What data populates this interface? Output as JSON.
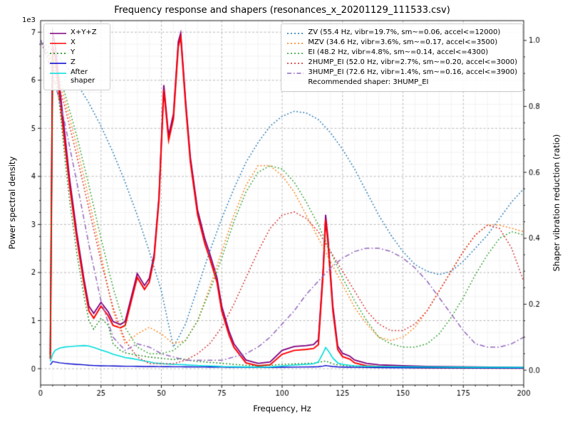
{
  "chart_data": {
    "type": "line",
    "title": "Frequency response and shapers (resonances_x_20201129_111533.csv)",
    "xlabel": "Frequency, Hz",
    "ylabel_left": "Power spectral density",
    "ylabel_right": "Shaper vibration reduction (ratio)",
    "left_axis_multiplier": "1e3",
    "legend_note": "Recommended shaper: 3HUMP_EI",
    "recommended_shaper": "3HUMP_EI",
    "grid": "both",
    "legend_positions": {
      "psd": "upper left",
      "shapers": "upper right"
    },
    "xlim": [
      0,
      200
    ],
    "ylim_left": [
      -340,
      7240
    ],
    "ylim_right": [
      -0.045,
      1.06
    ],
    "xticks": [
      0,
      25,
      50,
      75,
      100,
      125,
      150,
      175,
      200
    ],
    "yticks_left": [
      0,
      1000,
      2000,
      3000,
      4000,
      5000,
      6000,
      7000
    ],
    "yticks_right": [
      0.0,
      0.2,
      0.4,
      0.6,
      0.8,
      1.0
    ],
    "x_minor_step": 5,
    "y_minor_step_left": 250,
    "y_minor_step_right": 0.05,
    "psd_x": [
      4,
      5,
      6,
      8,
      10,
      12,
      15,
      18,
      20,
      22,
      25,
      28,
      30,
      33,
      35,
      38,
      40,
      43,
      45,
      47,
      49,
      51,
      53,
      55,
      57,
      58,
      60,
      62,
      65,
      68,
      70,
      73,
      75,
      78,
      80,
      85,
      90,
      95,
      100,
      105,
      110,
      113,
      115,
      117,
      118,
      119,
      121,
      123,
      125,
      128,
      130,
      135,
      140,
      150,
      160,
      180,
      200
    ],
    "shaper_x": [
      0,
      5,
      10,
      15,
      20,
      25,
      30,
      35,
      40,
      45,
      50,
      55,
      60,
      65,
      70,
      75,
      80,
      85,
      90,
      95,
      100,
      105,
      110,
      115,
      120,
      125,
      130,
      135,
      140,
      145,
      150,
      155,
      160,
      165,
      170,
      175,
      180,
      185,
      190,
      195,
      200
    ],
    "series": [
      {
        "name": "X+Y+Z",
        "label": "X+Y+Z",
        "axis": "left",
        "x_ref": "psd_x",
        "color": "#800080",
        "style": "solid",
        "width": 1.8,
        "y": [
          300,
          7000,
          6750,
          5800,
          4900,
          3950,
          2820,
          1850,
          1300,
          1150,
          1380,
          1180,
          980,
          920,
          980,
          1580,
          1980,
          1730,
          1880,
          2380,
          3580,
          5900,
          4850,
          5300,
          6800,
          6980,
          5600,
          4400,
          3300,
          2700,
          2400,
          1900,
          1300,
          780,
          520,
          180,
          110,
          140,
          380,
          460,
          480,
          500,
          600,
          2100,
          3200,
          2700,
          1300,
          470,
          320,
          260,
          180,
          110,
          80,
          60,
          45,
          35,
          25
        ]
      },
      {
        "name": "X",
        "label": "X",
        "axis": "left",
        "x_ref": "psd_x",
        "color": "#ff0000",
        "style": "solid",
        "width": 2.0,
        "y": [
          200,
          6700,
          6500,
          5600,
          4700,
          3800,
          2700,
          1750,
          1200,
          1050,
          1300,
          1100,
          900,
          850,
          900,
          1500,
          1900,
          1650,
          1800,
          2300,
          3500,
          5800,
          4750,
          5200,
          6700,
          6900,
          5500,
          4300,
          3200,
          2600,
          2300,
          1800,
          1200,
          700,
          450,
          120,
          60,
          80,
          300,
          380,
          400,
          420,
          500,
          2000,
          3100,
          2600,
          1200,
          400,
          250,
          200,
          120,
          60,
          40,
          30,
          20,
          15,
          10
        ]
      },
      {
        "name": "Y",
        "label": "Y",
        "axis": "left",
        "x_ref": "psd_x",
        "color": "#008000",
        "style": "dotted",
        "width": 1.4,
        "y": [
          250,
          6500,
          6300,
          5400,
          4400,
          3500,
          2400,
          1500,
          1000,
          820,
          1050,
          900,
          520,
          380,
          330,
          300,
          280,
          260,
          240,
          230,
          220,
          210,
          200,
          190,
          200,
          210,
          190,
          170,
          150,
          140,
          130,
          120,
          110,
          100,
          90,
          70,
          60,
          70,
          90,
          100,
          110,
          115,
          130,
          150,
          160,
          140,
          100,
          80,
          70,
          60,
          50,
          40,
          35,
          25,
          20,
          12,
          10
        ]
      },
      {
        "name": "Z",
        "label": "Z",
        "axis": "left",
        "x_ref": "psd_x",
        "color": "#0000cc",
        "style": "solid",
        "width": 1.4,
        "y": [
          80,
          150,
          140,
          120,
          110,
          100,
          90,
          80,
          70,
          65,
          60,
          58,
          55,
          52,
          50,
          50,
          48,
          46,
          45,
          44,
          43,
          42,
          41,
          40,
          40,
          40,
          38,
          37,
          36,
          35,
          34,
          33,
          32,
          31,
          30,
          28,
          27,
          27,
          30,
          32,
          35,
          38,
          42,
          55,
          65,
          58,
          45,
          38,
          34,
          30,
          28,
          25,
          22,
          20,
          18,
          15,
          12
        ]
      },
      {
        "name": "After shaper",
        "label": "After shaper",
        "axis": "left",
        "x_ref": "psd_x",
        "color": "#00dddd",
        "style": "solid",
        "width": 1.6,
        "y": [
          150,
          300,
          380,
          430,
          450,
          460,
          470,
          480,
          470,
          440,
          390,
          340,
          300,
          260,
          230,
          210,
          190,
          160,
          140,
          120,
          110,
          100,
          95,
          90,
          85,
          85,
          80,
          75,
          65,
          60,
          55,
          50,
          45,
          42,
          40,
          35,
          32,
          35,
          55,
          75,
          90,
          100,
          140,
          330,
          440,
          380,
          220,
          120,
          90,
          70,
          60,
          50,
          45,
          40,
          35,
          28,
          25
        ]
      },
      {
        "name": "ZV",
        "label": "ZV (55.4 Hz, vibr=19.7%, sm~=0.06, accel<=12000)",
        "axis": "right",
        "x_ref": "shaper_x",
        "color": "#1f77b4",
        "style": "dotted",
        "width": 1.5,
        "y": [
          1.0,
          0.97,
          0.93,
          0.87,
          0.81,
          0.74,
          0.66,
          0.57,
          0.47,
          0.36,
          0.24,
          0.07,
          0.14,
          0.25,
          0.36,
          0.46,
          0.55,
          0.63,
          0.69,
          0.74,
          0.77,
          0.785,
          0.78,
          0.76,
          0.72,
          0.67,
          0.61,
          0.54,
          0.47,
          0.41,
          0.36,
          0.32,
          0.3,
          0.29,
          0.3,
          0.33,
          0.37,
          0.41,
          0.46,
          0.51,
          0.55
        ]
      },
      {
        "name": "MZV",
        "label": "MZV (34.6 Hz, vibr=3.6%, sm~=0.17, accel<=3500)",
        "axis": "right",
        "x_ref": "shaper_x",
        "color": "#ff7f0e",
        "style": "dotted",
        "width": 1.5,
        "y": [
          1.0,
          0.93,
          0.82,
          0.68,
          0.52,
          0.35,
          0.18,
          0.08,
          0.11,
          0.13,
          0.11,
          0.08,
          0.09,
          0.15,
          0.25,
          0.36,
          0.47,
          0.56,
          0.62,
          0.62,
          0.59,
          0.54,
          0.47,
          0.4,
          0.33,
          0.26,
          0.19,
          0.14,
          0.1,
          0.09,
          0.1,
          0.13,
          0.18,
          0.24,
          0.3,
          0.36,
          0.41,
          0.44,
          0.44,
          0.43,
          0.42
        ]
      },
      {
        "name": "EI",
        "label": "EI (48.2 Hz, vibr=4.8%, sm~=0.14, accel<=4300)",
        "axis": "right",
        "x_ref": "shaper_x",
        "color": "#2ca02c",
        "style": "dotted",
        "width": 1.5,
        "y": [
          1.0,
          0.94,
          0.84,
          0.71,
          0.56,
          0.4,
          0.25,
          0.13,
          0.07,
          0.05,
          0.05,
          0.06,
          0.09,
          0.15,
          0.24,
          0.34,
          0.45,
          0.54,
          0.6,
          0.62,
          0.61,
          0.57,
          0.51,
          0.44,
          0.36,
          0.28,
          0.21,
          0.15,
          0.1,
          0.08,
          0.07,
          0.07,
          0.08,
          0.11,
          0.16,
          0.22,
          0.29,
          0.35,
          0.4,
          0.42,
          0.41
        ]
      },
      {
        "name": "2HUMP_EI",
        "label": "2HUMP_EI (52.0 Hz, vibr=2.7%, sm~=0.20, accel<=3000)",
        "axis": "right",
        "x_ref": "shaper_x",
        "color": "#d62728",
        "style": "dotted",
        "width": 1.5,
        "y": [
          1.0,
          0.92,
          0.8,
          0.65,
          0.49,
          0.33,
          0.19,
          0.09,
          0.04,
          0.02,
          0.02,
          0.02,
          0.03,
          0.05,
          0.08,
          0.13,
          0.2,
          0.28,
          0.36,
          0.43,
          0.47,
          0.48,
          0.46,
          0.42,
          0.36,
          0.3,
          0.24,
          0.18,
          0.14,
          0.12,
          0.12,
          0.14,
          0.18,
          0.24,
          0.3,
          0.36,
          0.41,
          0.44,
          0.43,
          0.37,
          0.27
        ]
      },
      {
        "name": "3HUMP_EI",
        "label": "3HUMP_EI (72.6 Hz, vibr=1.4%, sm~=0.16, accel<=3900)",
        "axis": "right",
        "x_ref": "shaper_x",
        "color": "#9467bd",
        "style": "dashdot",
        "width": 1.5,
        "y": [
          1.0,
          0.9,
          0.75,
          0.57,
          0.38,
          0.21,
          0.1,
          0.06,
          0.08,
          0.07,
          0.05,
          0.04,
          0.03,
          0.03,
          0.03,
          0.03,
          0.04,
          0.05,
          0.07,
          0.1,
          0.14,
          0.18,
          0.23,
          0.27,
          0.31,
          0.34,
          0.36,
          0.37,
          0.37,
          0.36,
          0.34,
          0.31,
          0.27,
          0.22,
          0.17,
          0.12,
          0.08,
          0.07,
          0.07,
          0.08,
          0.1
        ]
      }
    ]
  }
}
